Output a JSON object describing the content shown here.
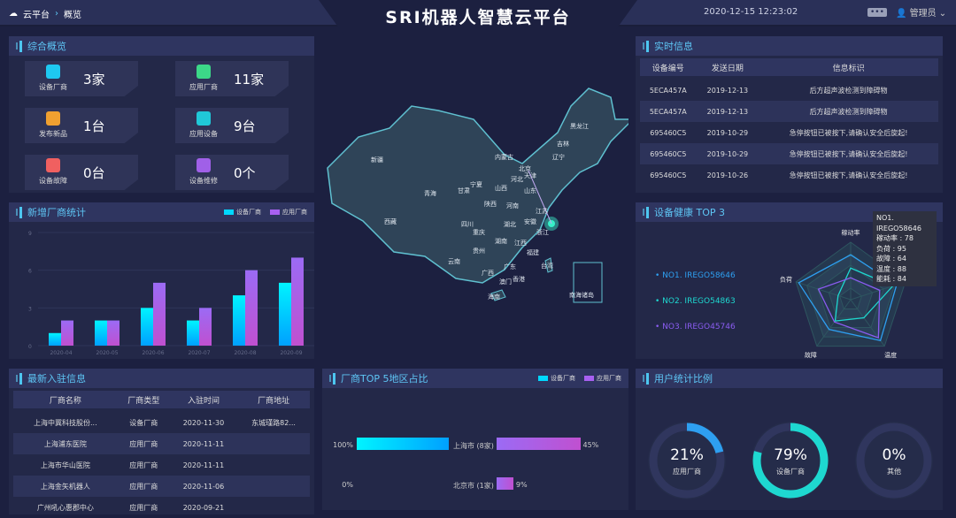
{
  "header": {
    "breadcrumb": [
      "云平台",
      "概览"
    ],
    "title": "SRI机器人智慧云平台",
    "datetime": "2020-12-15 12:23:02",
    "user": "管理员"
  },
  "overview": {
    "title": "综合概览",
    "cards": [
      {
        "icon": "factory-icon",
        "label": "设备厂商",
        "value": "3家",
        "color": "#1ec8f0"
      },
      {
        "icon": "document-icon",
        "label": "应用厂商",
        "value": "11家",
        "color": "#3cd888"
      },
      {
        "icon": "new-badge-icon",
        "label": "发布新品",
        "value": "1台",
        "color": "#f0a030"
      },
      {
        "icon": "device-gear-icon",
        "label": "应用设备",
        "value": "9台",
        "color": "#20c8d8"
      },
      {
        "icon": "alarm-icon",
        "label": "设备故障",
        "value": "0台",
        "color": "#f06060"
      },
      {
        "icon": "wrench-icon",
        "label": "设备维修",
        "value": "0个",
        "color": "#a060e8"
      }
    ]
  },
  "new_vendor": {
    "title": "新增厂商统计",
    "chart_data": {
      "type": "bar",
      "categories": [
        "2020-04",
        "2020-05",
        "2020-06",
        "2020-07",
        "2020-08",
        "2020-09"
      ],
      "series": [
        {
          "name": "设备厂商",
          "values": [
            1,
            2,
            3,
            2,
            4,
            5
          ],
          "color": "#00e4ff"
        },
        {
          "name": "应用厂商",
          "values": [
            2,
            2,
            5,
            3,
            6,
            7
          ],
          "color": "#9b6bf5"
        }
      ],
      "ylim": [
        0,
        9
      ],
      "yticks": [
        "0",
        "3",
        "6",
        "9"
      ],
      "grid": true,
      "legend": "top-right"
    }
  },
  "map": {
    "provinces": [
      "新疆",
      "西藏",
      "青海",
      "甘肃",
      "宁夏",
      "内蒙古",
      "黑龙江",
      "吉林",
      "辽宁",
      "北京",
      "天津",
      "河北",
      "山西",
      "山东",
      "陕西",
      "河南",
      "江苏",
      "安徽",
      "四川",
      "重庆",
      "湖北",
      "浙江",
      "湖南",
      "江西",
      "贵州",
      "云南",
      "广西",
      "广东",
      "福建",
      "台湾",
      "澳门",
      "香港",
      "海南",
      "南海诸岛"
    ]
  },
  "realtime": {
    "title": "实时信息",
    "columns": [
      "设备编号",
      "发送日期",
      "信息标识"
    ],
    "rows": [
      [
        "5ECA457A",
        "2019-12-13",
        "后方超声波检测到障碍物"
      ],
      [
        "5ECA457A",
        "2019-12-13",
        "后方超声波检测到障碍物"
      ],
      [
        "695460C5",
        "2019-10-29",
        "急停按钮已被按下,请确认安全后旋起!"
      ],
      [
        "695460C5",
        "2019-10-29",
        "急停按钮已被按下,请确认安全后旋起!"
      ],
      [
        "695460C5",
        "2019-10-26",
        "急停按钮已被按下,请确认安全后旋起!"
      ]
    ]
  },
  "health": {
    "title": "设备健康 TOP 3",
    "chart_data": {
      "type": "radar",
      "indicators": [
        "稼动率",
        "能耗",
        "温度",
        "故障",
        "负荷"
      ],
      "max": 100,
      "series": [
        {
          "name": "NO1. IREGO58646",
          "values": [
            78,
            84,
            88,
            64,
            95
          ],
          "color": "#2e9ff0"
        },
        {
          "name": "NO2. IREGO54863",
          "values": [
            55,
            77,
            39,
            46,
            23
          ],
          "color": "#1ed8d0"
        },
        {
          "name": "NO3. IREGO45746",
          "values": [
            38,
            53,
            82,
            48,
            59
          ],
          "color": "#8a5cf0"
        }
      ]
    },
    "tooltip": [
      "NO1. IREGO58646",
      "稼动率 : 78",
      "负荷 : 95",
      "故障 : 64",
      "温度 : 88",
      "能耗 : 84"
    ]
  },
  "entries": {
    "title": "最新入驻信息",
    "columns": [
      "厂商名称",
      "厂商类型",
      "入驻时间",
      "厂商地址"
    ],
    "rows": [
      [
        "上海中冀科技股份...",
        "设备厂商",
        "2020-11-30",
        "东城瑾路82..."
      ],
      [
        "上海浦东医院",
        "应用厂商",
        "2020-11-11",
        ""
      ],
      [
        "上海市华山医院",
        "应用厂商",
        "2020-11-11",
        ""
      ],
      [
        "上海金矢机器人",
        "应用厂商",
        "2020-11-06",
        ""
      ],
      [
        "广州吼心惠郡中心",
        "应用厂商",
        "2020-09-21",
        ""
      ]
    ]
  },
  "region": {
    "title": "厂商TOP 5地区占比",
    "legend": [
      "设备厂商",
      "应用厂商"
    ],
    "chart_data": {
      "type": "bar",
      "orientation": "horizontal-butterfly",
      "categories": [
        "上海市 (8家)",
        "北京市 (1家)"
      ],
      "series": [
        {
          "name": "设备厂商",
          "values": [
            100,
            0
          ],
          "labels": [
            "100%",
            "0%"
          ]
        },
        {
          "name": "应用厂商",
          "values": [
            45,
            9
          ],
          "labels": [
            "45%",
            "9%"
          ]
        }
      ]
    }
  },
  "users": {
    "title": "用户统计比例",
    "items": [
      {
        "pct": 21,
        "label": "21%",
        "name": "应用厂商",
        "color": "#2e9ff0"
      },
      {
        "pct": 79,
        "label": "79%",
        "name": "设备厂商",
        "color": "#1ed8d0"
      },
      {
        "pct": 0,
        "label": "0%",
        "name": "其他",
        "color": "#888"
      }
    ]
  }
}
